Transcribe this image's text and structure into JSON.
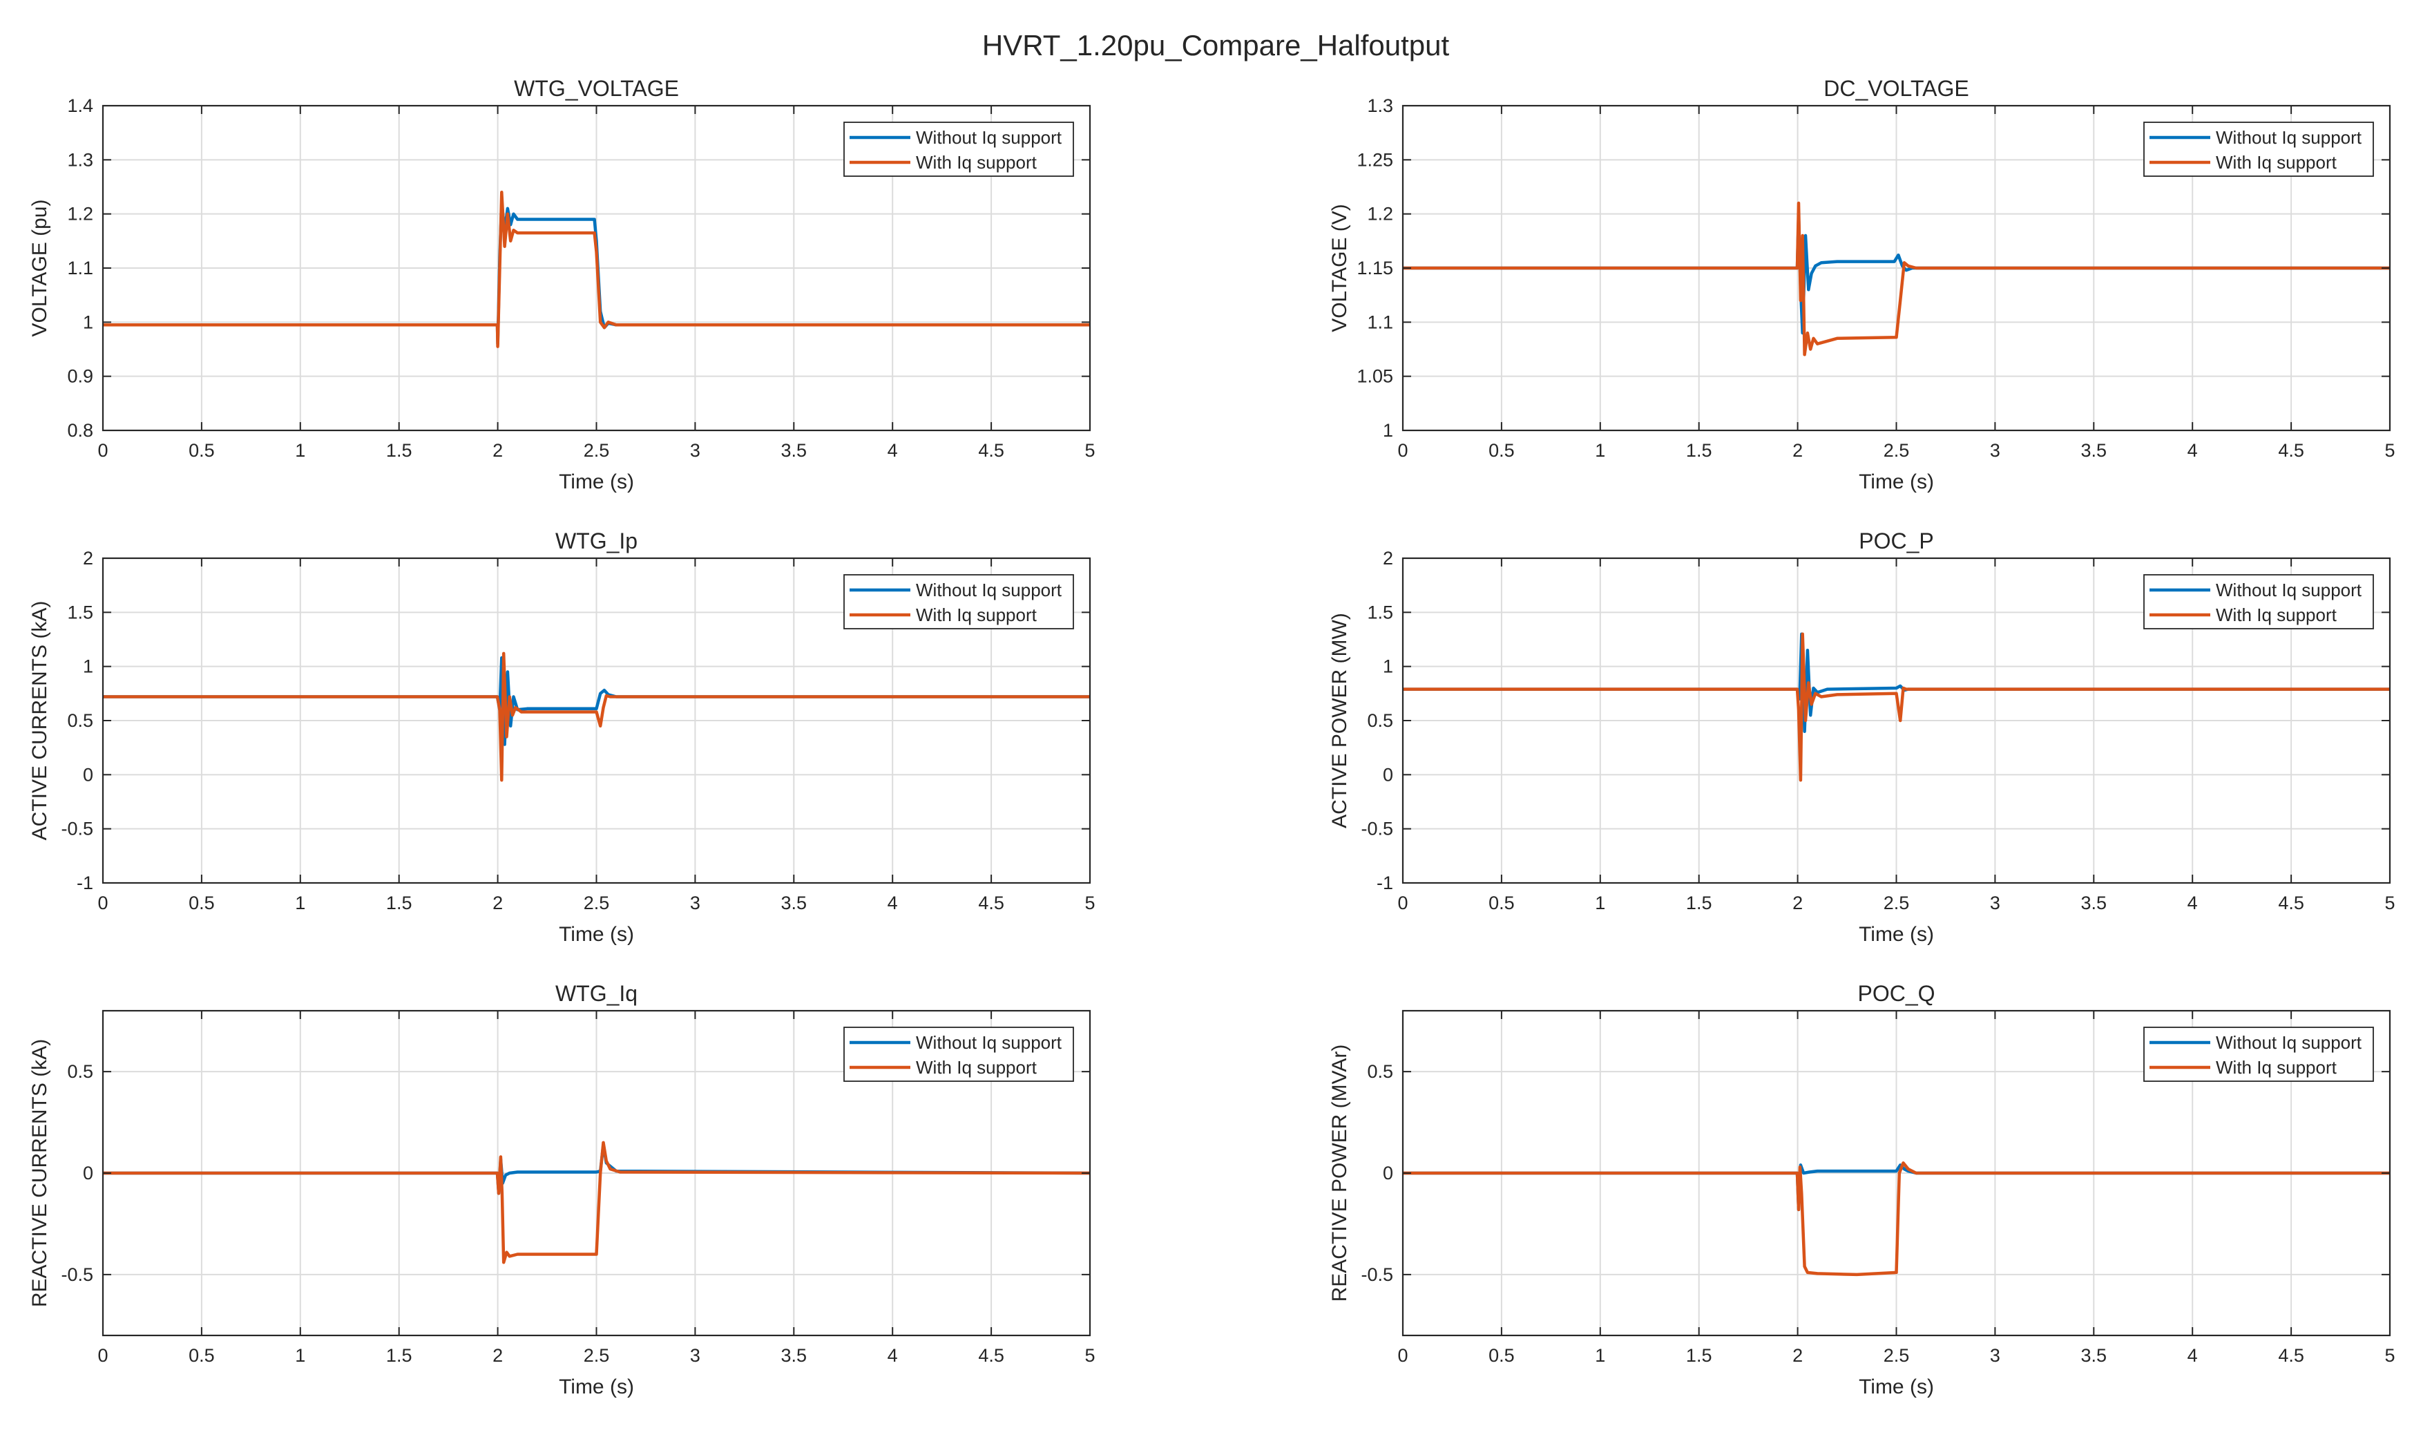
{
  "figure": {
    "title": "HVRT_1.20pu_Compare_Halfoutput"
  },
  "colors": {
    "series1": "#0072BD",
    "series2": "#D95319",
    "grid": "#dcdcdc",
    "axis": "#262626"
  },
  "chart_data": [
    {
      "type": "line",
      "title": "WTG_VOLTAGE",
      "xlabel": "Time (s)",
      "ylabel": "VOLTAGE (pu)",
      "xlim": [
        0,
        5
      ],
      "ylim": [
        0.8,
        1.4
      ],
      "xticks": [
        0,
        0.5,
        1,
        1.5,
        2,
        2.5,
        3,
        3.5,
        4,
        4.5,
        5
      ],
      "xtick_labels": [
        "0",
        "0.5",
        "1",
        "1.5",
        "2",
        "2.5",
        "3",
        "3.5",
        "4",
        "4.5",
        "5"
      ],
      "yticks": [
        0.8,
        0.9,
        1,
        1.1,
        1.2,
        1.3,
        1.4
      ],
      "ytick_labels": [
        "0.8",
        "0.9",
        "1",
        "1.1",
        "1.2",
        "1.3",
        "1.4"
      ],
      "grid": true,
      "legend_position": "top-right",
      "series": [
        {
          "name": "Without Iq support",
          "x": [
            0,
            1.998,
            2.0,
            2.01,
            2.02,
            2.035,
            2.05,
            2.065,
            2.08,
            2.1,
            2.2,
            2.49,
            2.5,
            2.52,
            2.54,
            2.56,
            2.6,
            5
          ],
          "y": [
            0.995,
            0.995,
            0.96,
            1.12,
            1.22,
            1.17,
            1.21,
            1.18,
            1.2,
            1.19,
            1.19,
            1.19,
            1.15,
            1.02,
            0.99,
            0.998,
            0.995,
            0.995
          ]
        },
        {
          "name": "With Iq support",
          "x": [
            0,
            1.998,
            2.0,
            2.01,
            2.02,
            2.035,
            2.05,
            2.065,
            2.08,
            2.1,
            2.2,
            2.49,
            2.5,
            2.52,
            2.54,
            2.56,
            2.6,
            5
          ],
          "y": [
            0.995,
            0.995,
            0.955,
            1.1,
            1.24,
            1.14,
            1.2,
            1.15,
            1.17,
            1.165,
            1.165,
            1.165,
            1.13,
            1.0,
            0.99,
            1.0,
            0.995,
            0.995
          ]
        }
      ]
    },
    {
      "type": "line",
      "title": "DC_VOLTAGE",
      "xlabel": "Time (s)",
      "ylabel": "VOLTAGE (V)",
      "xlim": [
        0,
        5
      ],
      "ylim": [
        1,
        1.3
      ],
      "xticks": [
        0,
        0.5,
        1,
        1.5,
        2,
        2.5,
        3,
        3.5,
        4,
        4.5,
        5
      ],
      "xtick_labels": [
        "0",
        "0.5",
        "1",
        "1.5",
        "2",
        "2.5",
        "3",
        "3.5",
        "4",
        "4.5",
        "5"
      ],
      "yticks": [
        1,
        1.05,
        1.1,
        1.15,
        1.2,
        1.25,
        1.3
      ],
      "ytick_labels": [
        "1",
        "1.05",
        "1.1",
        "1.15",
        "1.2",
        "1.25",
        "1.3"
      ],
      "grid": true,
      "legend_position": "top-right",
      "series": [
        {
          "name": "Without Iq support",
          "x": [
            0,
            1.998,
            2.005,
            2.015,
            2.025,
            2.04,
            2.055,
            2.07,
            2.09,
            2.12,
            2.2,
            2.49,
            2.51,
            2.53,
            2.55,
            2.58,
            5
          ],
          "y": [
            1.15,
            1.15,
            1.2,
            1.13,
            1.09,
            1.18,
            1.13,
            1.145,
            1.152,
            1.155,
            1.156,
            1.156,
            1.162,
            1.152,
            1.148,
            1.15,
            1.15
          ]
        },
        {
          "name": "With Iq support",
          "x": [
            0,
            1.998,
            2.005,
            2.015,
            2.025,
            2.035,
            2.05,
            2.065,
            2.08,
            2.1,
            2.2,
            2.5,
            2.52,
            2.54,
            2.56,
            2.6,
            5
          ],
          "y": [
            1.15,
            1.15,
            1.21,
            1.12,
            1.18,
            1.07,
            1.09,
            1.075,
            1.085,
            1.08,
            1.085,
            1.086,
            1.12,
            1.155,
            1.152,
            1.15,
            1.15
          ]
        }
      ]
    },
    {
      "type": "line",
      "title": "WTG_Ip",
      "xlabel": "Time (s)",
      "ylabel": "ACTIVE CURRENTS (kA)",
      "xlim": [
        0,
        5
      ],
      "ylim": [
        -1,
        2
      ],
      "xticks": [
        0,
        0.5,
        1,
        1.5,
        2,
        2.5,
        3,
        3.5,
        4,
        4.5,
        5
      ],
      "xtick_labels": [
        "0",
        "0.5",
        "1",
        "1.5",
        "2",
        "2.5",
        "3",
        "3.5",
        "4",
        "4.5",
        "5"
      ],
      "yticks": [
        -1,
        -0.5,
        0,
        0.5,
        1,
        1.5,
        2
      ],
      "ytick_labels": [
        "-1",
        "-0.5",
        "0",
        "0.5",
        "1",
        "1.5",
        "2"
      ],
      "grid": true,
      "legend_position": "top-right",
      "series": [
        {
          "name": "Without Iq support",
          "x": [
            0,
            1.998,
            2.01,
            2.02,
            2.035,
            2.05,
            2.065,
            2.08,
            2.1,
            2.15,
            2.5,
            2.52,
            2.54,
            2.56,
            2.6,
            5
          ],
          "y": [
            0.72,
            0.72,
            0.6,
            1.08,
            0.28,
            0.95,
            0.45,
            0.72,
            0.6,
            0.61,
            0.61,
            0.75,
            0.78,
            0.74,
            0.72,
            0.72
          ]
        },
        {
          "name": "With Iq support",
          "x": [
            0,
            1.998,
            2.01,
            2.02,
            2.03,
            2.045,
            2.06,
            2.075,
            2.09,
            2.12,
            2.2,
            2.5,
            2.52,
            2.535,
            2.55,
            2.57,
            5
          ],
          "y": [
            0.72,
            0.72,
            0.6,
            -0.05,
            1.12,
            0.35,
            0.72,
            0.55,
            0.62,
            0.58,
            0.58,
            0.58,
            0.45,
            0.62,
            0.73,
            0.72,
            0.72
          ]
        }
      ]
    },
    {
      "type": "line",
      "title": "POC_P",
      "xlabel": "Time (s)",
      "ylabel": "ACTIVE POWER (MW)",
      "xlim": [
        0,
        5
      ],
      "ylim": [
        -1,
        2
      ],
      "xticks": [
        0,
        0.5,
        1,
        1.5,
        2,
        2.5,
        3,
        3.5,
        4,
        4.5,
        5
      ],
      "xtick_labels": [
        "0",
        "0.5",
        "1",
        "1.5",
        "2",
        "2.5",
        "3",
        "3.5",
        "4",
        "4.5",
        "5"
      ],
      "yticks": [
        -1,
        -0.5,
        0,
        0.5,
        1,
        1.5,
        2
      ],
      "ytick_labels": [
        "-1",
        "-0.5",
        "0",
        "0.5",
        "1",
        "1.5",
        "2"
      ],
      "grid": true,
      "legend_position": "top-right",
      "series": [
        {
          "name": "Without Iq support",
          "x": [
            0,
            1.998,
            2.01,
            2.02,
            2.035,
            2.05,
            2.065,
            2.08,
            2.1,
            2.15,
            2.5,
            2.52,
            2.54,
            2.56,
            2.6,
            5
          ],
          "y": [
            0.79,
            0.79,
            0.7,
            1.3,
            0.4,
            1.15,
            0.55,
            0.8,
            0.76,
            0.79,
            0.8,
            0.82,
            0.78,
            0.79,
            0.79,
            0.79
          ]
        },
        {
          "name": "With Iq support",
          "x": [
            0,
            1.998,
            2.005,
            2.015,
            2.025,
            2.04,
            2.055,
            2.07,
            2.09,
            2.12,
            2.2,
            2.5,
            2.52,
            2.535,
            2.55,
            2.57,
            5
          ],
          "y": [
            0.79,
            0.79,
            0.6,
            -0.05,
            1.3,
            0.5,
            0.85,
            0.65,
            0.75,
            0.72,
            0.74,
            0.75,
            0.5,
            0.8,
            0.79,
            0.79,
            0.79
          ]
        }
      ]
    },
    {
      "type": "line",
      "title": "WTG_Iq",
      "xlabel": "Time (s)",
      "ylabel": "REACTIVE CURRENTS (kA)",
      "xlim": [
        0,
        5
      ],
      "ylim": [
        -0.8,
        0.8
      ],
      "xticks": [
        0,
        0.5,
        1,
        1.5,
        2,
        2.5,
        3,
        3.5,
        4,
        4.5,
        5
      ],
      "xtick_labels": [
        "0",
        "0.5",
        "1",
        "1.5",
        "2",
        "2.5",
        "3",
        "3.5",
        "4",
        "4.5",
        "5"
      ],
      "yticks": [
        -0.5,
        0,
        0.5
      ],
      "ytick_labels": [
        "-0.5",
        "0",
        "0.5"
      ],
      "grid": true,
      "legend_position": "top-right",
      "series": [
        {
          "name": "Without Iq support",
          "x": [
            0,
            1.998,
            2.005,
            2.015,
            2.025,
            2.04,
            2.06,
            2.1,
            2.15,
            2.5,
            2.52,
            2.535,
            2.55,
            2.6,
            5
          ],
          "y": [
            0,
            0,
            -0.1,
            0.07,
            -0.05,
            -0.01,
            0,
            0.005,
            0.005,
            0.005,
            0.01,
            0.14,
            0.05,
            0.01,
            0
          ]
        },
        {
          "name": "With Iq support",
          "x": [
            0,
            1.998,
            2.005,
            2.015,
            2.022,
            2.03,
            2.045,
            2.06,
            2.1,
            2.5,
            2.52,
            2.535,
            2.55,
            2.57,
            2.62,
            5
          ],
          "y": [
            0,
            0,
            -0.1,
            0.08,
            -0.1,
            -0.44,
            -0.39,
            -0.41,
            -0.4,
            -0.4,
            0.0,
            0.15,
            0.06,
            0.02,
            0.005,
            0
          ]
        }
      ]
    },
    {
      "type": "line",
      "title": "POC_Q",
      "xlabel": "Time (s)",
      "ylabel": "REACTIVE POWER (MVAr)",
      "xlim": [
        0,
        5
      ],
      "ylim": [
        -0.8,
        0.8
      ],
      "xticks": [
        0,
        0.5,
        1,
        1.5,
        2,
        2.5,
        3,
        3.5,
        4,
        4.5,
        5
      ],
      "xtick_labels": [
        "0",
        "0.5",
        "1",
        "1.5",
        "2",
        "2.5",
        "3",
        "3.5",
        "4",
        "4.5",
        "5"
      ],
      "yticks": [
        -0.5,
        0,
        0.5
      ],
      "ytick_labels": [
        "-0.5",
        "0",
        "0.5"
      ],
      "grid": true,
      "legend_position": "top-right",
      "series": [
        {
          "name": "Without Iq support",
          "x": [
            0,
            1.998,
            2.005,
            2.015,
            2.03,
            2.06,
            2.1,
            2.5,
            2.52,
            2.54,
            2.56,
            2.6,
            5
          ],
          "y": [
            0,
            0,
            -0.18,
            0.04,
            0.0,
            0.005,
            0.01,
            0.01,
            0.04,
            0.02,
            0.01,
            0.0,
            0
          ]
        },
        {
          "name": "With Iq support",
          "x": [
            0,
            1.998,
            2.005,
            2.012,
            2.02,
            2.035,
            2.05,
            2.1,
            2.3,
            2.5,
            2.515,
            2.535,
            2.56,
            2.6,
            5
          ],
          "y": [
            0,
            0,
            -0.18,
            0.03,
            -0.1,
            -0.46,
            -0.49,
            -0.495,
            -0.5,
            -0.49,
            0.0,
            0.05,
            0.02,
            0.0,
            0
          ]
        }
      ]
    }
  ]
}
